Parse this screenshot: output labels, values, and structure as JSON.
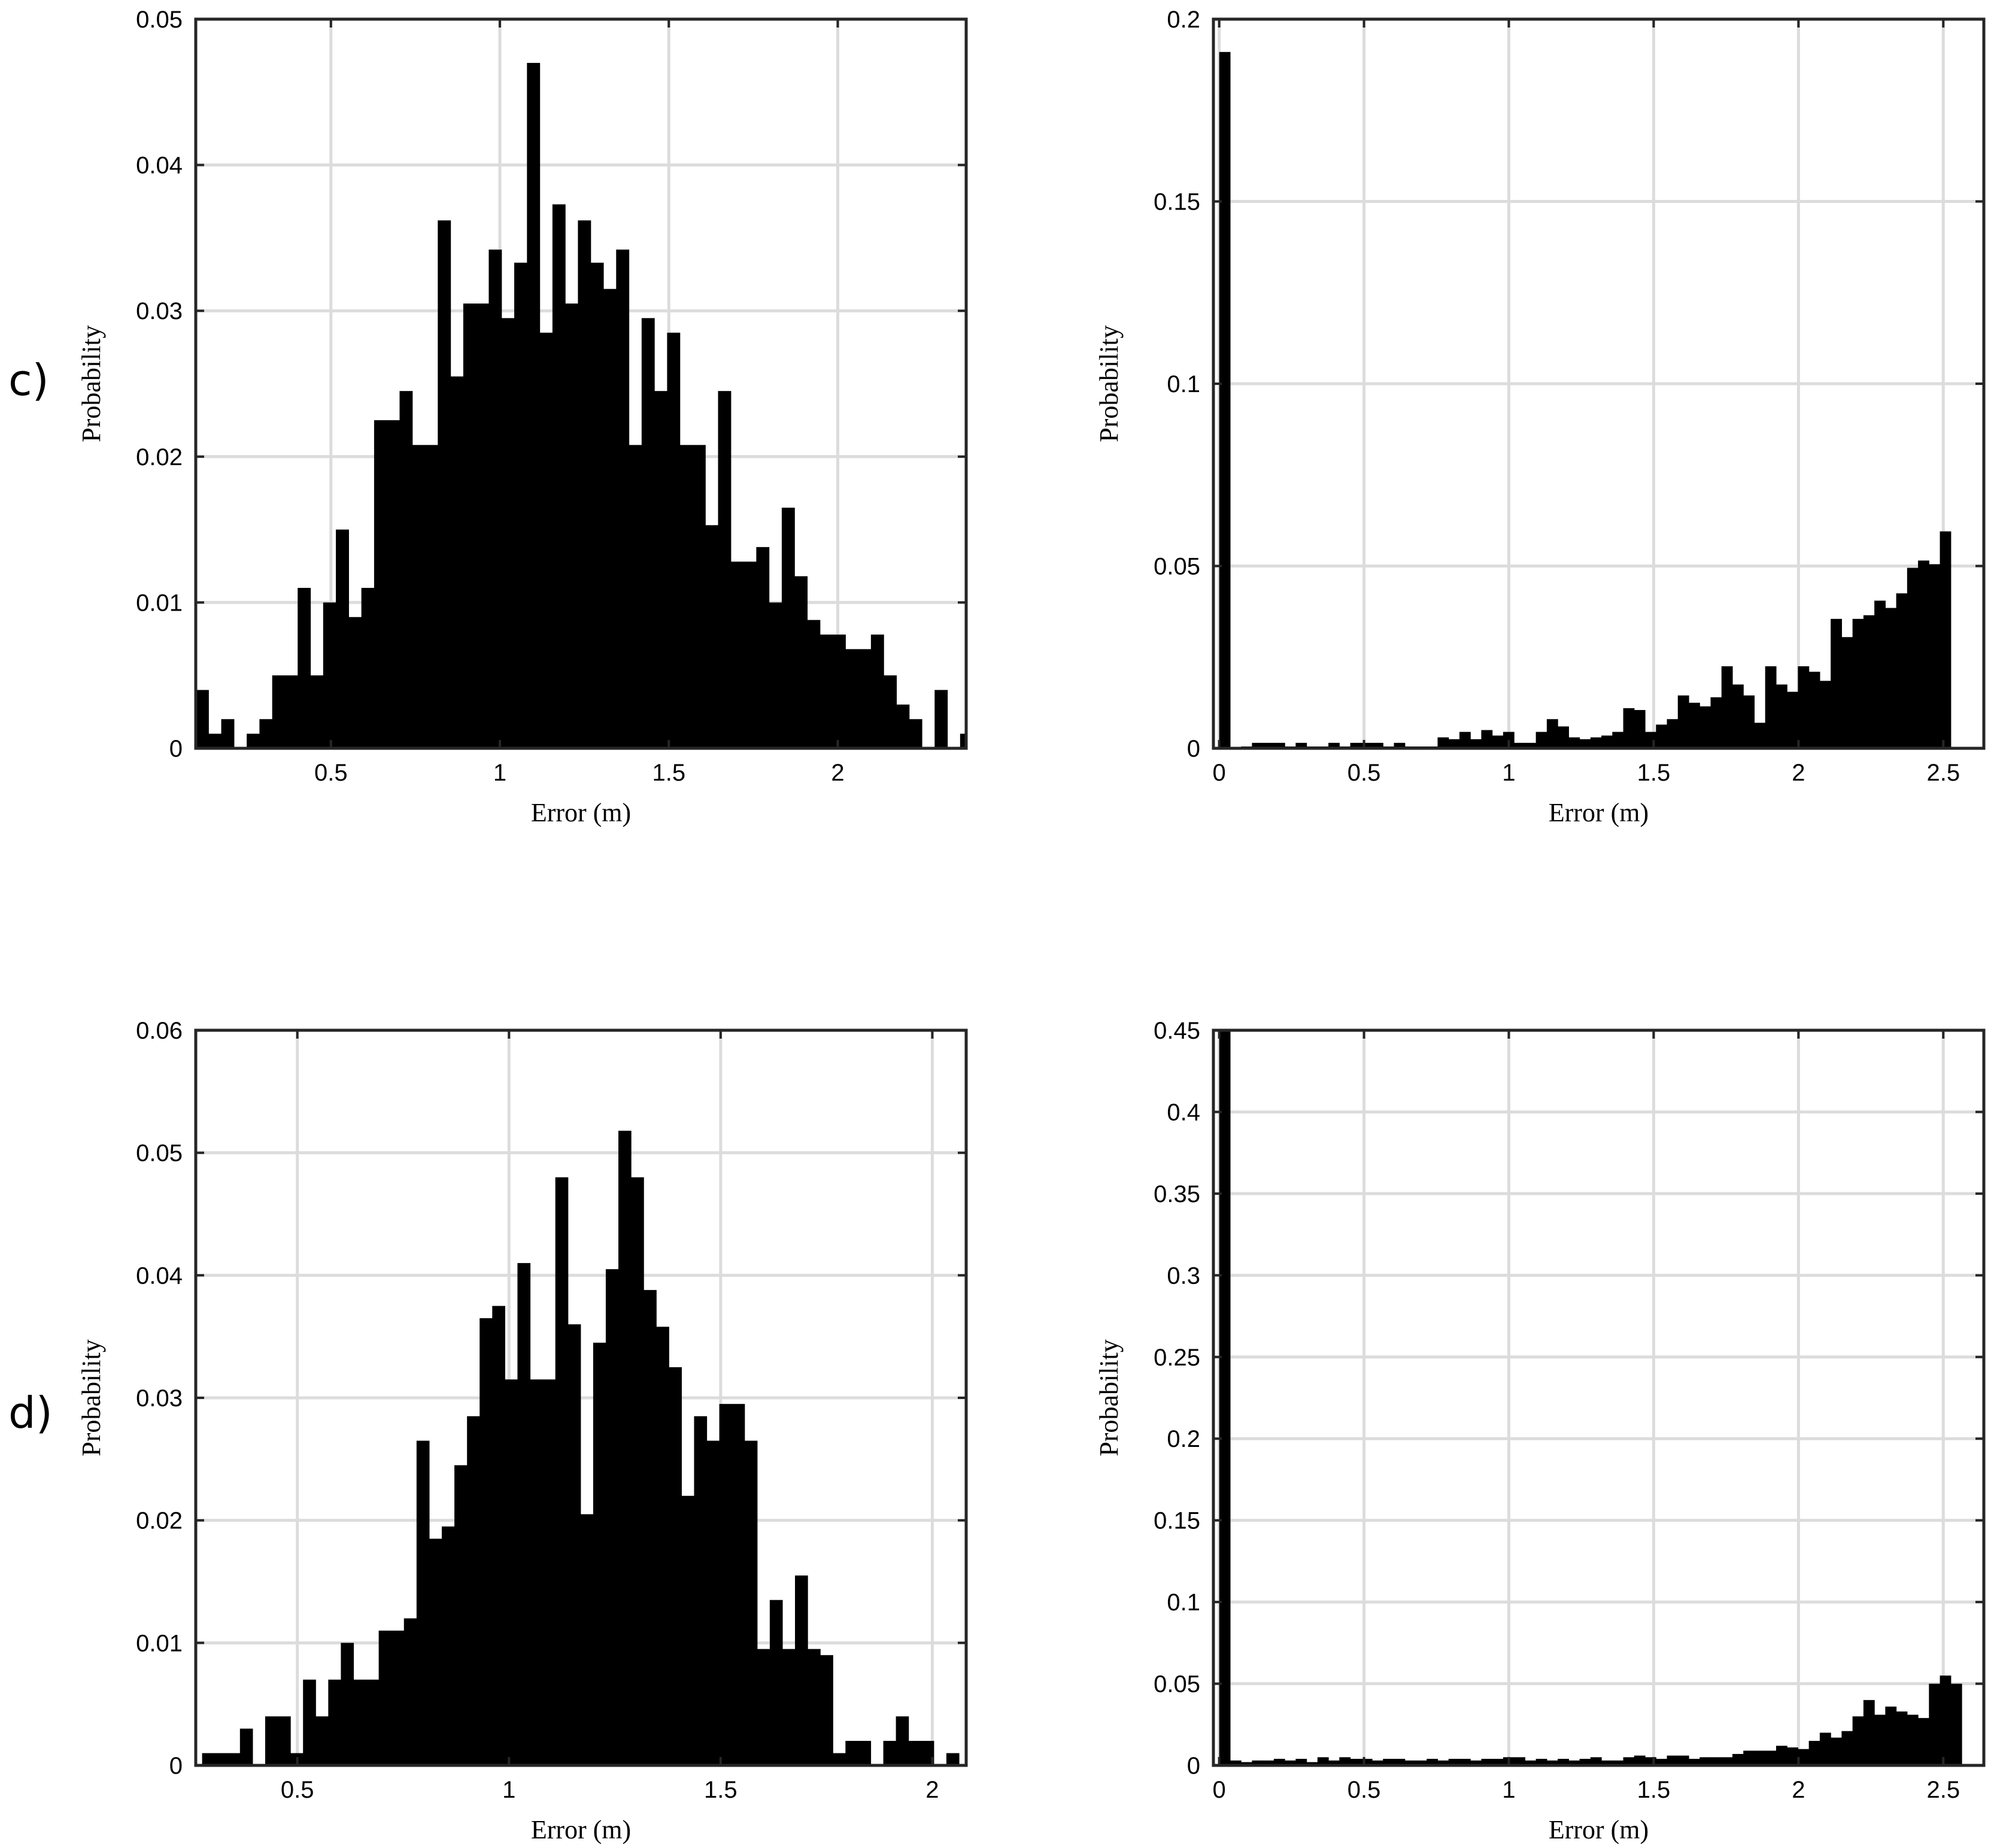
{
  "row_labels": [
    "c)",
    "d)"
  ],
  "chart_data": [
    {
      "type": "bar",
      "row_label": "c)",
      "xlabel": "Error (m)",
      "ylabel": "Probability",
      "xlim": [
        0.1,
        2.38
      ],
      "ylim": [
        0,
        0.05
      ],
      "xticks": [
        {
          "v": 0.5,
          "label": "0.5"
        },
        {
          "v": 1,
          "label": "1"
        },
        {
          "v": 1.5,
          "label": "1.5"
        },
        {
          "v": 2,
          "label": "2"
        }
      ],
      "yticks": [
        {
          "v": 0,
          "label": "0"
        },
        {
          "v": 0.01,
          "label": "0.01"
        },
        {
          "v": 0.02,
          "label": "0.02"
        },
        {
          "v": 0.03,
          "label": "0.03"
        },
        {
          "v": 0.04,
          "label": "0.04"
        },
        {
          "v": 0.05,
          "label": "0.05"
        }
      ],
      "grid": true,
      "bin_start": 0.1,
      "bin_width": 0.0377,
      "values": [
        0.004,
        0.001,
        0.002,
        0.0,
        0.001,
        0.002,
        0.005,
        0.005,
        0.011,
        0.005,
        0.01,
        0.015,
        0.009,
        0.011,
        0.0225,
        0.0225,
        0.0245,
        0.0208,
        0.0208,
        0.0362,
        0.0255,
        0.0305,
        0.0305,
        0.0342,
        0.0295,
        0.0333,
        0.047,
        0.0285,
        0.0373,
        0.0305,
        0.0362,
        0.0333,
        0.0315,
        0.0342,
        0.0208,
        0.0295,
        0.0245,
        0.0285,
        0.0208,
        0.0208,
        0.0153,
        0.0245,
        0.0128,
        0.0128,
        0.0138,
        0.01,
        0.0165,
        0.0118,
        0.0088,
        0.0078,
        0.0078,
        0.0068,
        0.0068,
        0.0078,
        0.005,
        0.003,
        0.002,
        0.0,
        0.004,
        0.0,
        0.001,
        0.0,
        0.0,
        0.001,
        0.0,
        0.001,
        0.0,
        0.001,
        0.0,
        0.001
      ]
    },
    {
      "type": "bar",
      "row_label": "c)",
      "xlabel": "Error (m)",
      "ylabel": "Probability",
      "xlim": [
        -0.02,
        2.64
      ],
      "ylim": [
        0,
        0.2
      ],
      "xticks": [
        {
          "v": 0,
          "label": "0"
        },
        {
          "v": 0.5,
          "label": "0.5"
        },
        {
          "v": 1,
          "label": "1"
        },
        {
          "v": 1.5,
          "label": "1.5"
        },
        {
          "v": 2,
          "label": "2"
        },
        {
          "v": 2.5,
          "label": "2.5"
        }
      ],
      "yticks": [
        {
          "v": 0,
          "label": "0"
        },
        {
          "v": 0.05,
          "label": "0.05"
        },
        {
          "v": 0.1,
          "label": "0.1"
        },
        {
          "v": 0.15,
          "label": "0.15"
        },
        {
          "v": 0.2,
          "label": "0.2"
        }
      ],
      "grid": true,
      "bin_start": 0.0,
      "bin_width": 0.0377,
      "values": [
        0.191,
        0.0,
        0.0005,
        0.0015,
        0.0015,
        0.0015,
        0.0005,
        0.0015,
        0.0005,
        0.0005,
        0.0015,
        0.0005,
        0.0015,
        0.0015,
        0.0015,
        0.0005,
        0.0015,
        0.0005,
        0.0005,
        0.0005,
        0.003,
        0.0025,
        0.0045,
        0.0025,
        0.005,
        0.0035,
        0.0045,
        0.0015,
        0.0015,
        0.0045,
        0.008,
        0.006,
        0.003,
        0.0025,
        0.003,
        0.0035,
        0.0045,
        0.011,
        0.0105,
        0.0045,
        0.0065,
        0.008,
        0.0145,
        0.0125,
        0.0115,
        0.014,
        0.0225,
        0.0175,
        0.0145,
        0.007,
        0.0225,
        0.0175,
        0.0155,
        0.0225,
        0.021,
        0.0185,
        0.0355,
        0.0305,
        0.0355,
        0.0365,
        0.0405,
        0.0385,
        0.0425,
        0.0495,
        0.0515,
        0.0505,
        0.0595
      ]
    },
    {
      "type": "bar",
      "row_label": "d)",
      "xlabel": "Error (m)",
      "ylabel": "Probability",
      "xlim": [
        0.26,
        2.08
      ],
      "ylim": [
        0,
        0.06
      ],
      "xticks": [
        {
          "v": 0.5,
          "label": "0.5"
        },
        {
          "v": 1,
          "label": "1"
        },
        {
          "v": 1.5,
          "label": "1.5"
        },
        {
          "v": 2,
          "label": "2"
        }
      ],
      "yticks": [
        {
          "v": 0,
          "label": "0"
        },
        {
          "v": 0.01,
          "label": "0.01"
        },
        {
          "v": 0.02,
          "label": "0.02"
        },
        {
          "v": 0.03,
          "label": "0.03"
        },
        {
          "v": 0.04,
          "label": "0.04"
        },
        {
          "v": 0.05,
          "label": "0.05"
        },
        {
          "v": 0.06,
          "label": "0.06"
        }
      ],
      "grid": true,
      "bin_start": 0.275,
      "bin_width": 0.0298,
      "values": [
        0.001,
        0.001,
        0.001,
        0.003,
        0.0,
        0.004,
        0.004,
        0.001,
        0.007,
        0.004,
        0.007,
        0.01,
        0.007,
        0.007,
        0.011,
        0.011,
        0.012,
        0.0265,
        0.0185,
        0.0195,
        0.0245,
        0.0285,
        0.0365,
        0.0375,
        0.0315,
        0.041,
        0.0315,
        0.0315,
        0.048,
        0.036,
        0.0205,
        0.0345,
        0.0405,
        0.0518,
        0.048,
        0.0388,
        0.0358,
        0.0325,
        0.022,
        0.0285,
        0.0265,
        0.0295,
        0.0295,
        0.0265,
        0.0095,
        0.0135,
        0.0095,
        0.0155,
        0.0095,
        0.009,
        0.001,
        0.002,
        0.002,
        0.0,
        0.002,
        0.004,
        0.002,
        0.002,
        0.0,
        0.001,
        0.0,
        0.0,
        0.0,
        0.002
      ]
    },
    {
      "type": "bar",
      "row_label": "d)",
      "xlabel": "Error (m)",
      "ylabel": "Probability",
      "xlim": [
        -0.02,
        2.64
      ],
      "ylim": [
        0,
        0.45
      ],
      "xticks": [
        {
          "v": 0,
          "label": "0"
        },
        {
          "v": 0.5,
          "label": "0.5"
        },
        {
          "v": 1,
          "label": "1"
        },
        {
          "v": 1.5,
          "label": "1.5"
        },
        {
          "v": 2,
          "label": "2"
        },
        {
          "v": 2.5,
          "label": "2.5"
        }
      ],
      "yticks": [
        {
          "v": 0,
          "label": "0"
        },
        {
          "v": 0.05,
          "label": "0.05"
        },
        {
          "v": 0.1,
          "label": "0.1"
        },
        {
          "v": 0.15,
          "label": "0.15"
        },
        {
          "v": 0.2,
          "label": "0.2"
        },
        {
          "v": 0.25,
          "label": "0.25"
        },
        {
          "v": 0.3,
          "label": "0.3"
        },
        {
          "v": 0.35,
          "label": "0.35"
        },
        {
          "v": 0.4,
          "label": "0.4"
        },
        {
          "v": 0.45,
          "label": "0.45"
        }
      ],
      "grid": true,
      "bin_start": 0.0,
      "bin_width": 0.0377,
      "values": [
        0.45,
        0.003,
        0.002,
        0.003,
        0.003,
        0.004,
        0.003,
        0.004,
        0.002,
        0.005,
        0.003,
        0.005,
        0.004,
        0.004,
        0.003,
        0.004,
        0.004,
        0.003,
        0.003,
        0.004,
        0.003,
        0.004,
        0.004,
        0.003,
        0.004,
        0.004,
        0.005,
        0.005,
        0.003,
        0.004,
        0.003,
        0.004,
        0.003,
        0.004,
        0.005,
        0.003,
        0.003,
        0.005,
        0.006,
        0.005,
        0.004,
        0.006,
        0.006,
        0.004,
        0.005,
        0.005,
        0.005,
        0.007,
        0.009,
        0.009,
        0.009,
        0.012,
        0.011,
        0.01,
        0.015,
        0.02,
        0.017,
        0.021,
        0.03,
        0.04,
        0.031,
        0.036,
        0.033,
        0.031,
        0.029,
        0.05,
        0.055,
        0.05
      ]
    }
  ]
}
